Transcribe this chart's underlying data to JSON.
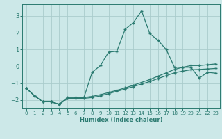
{
  "xlabel": "Humidex (Indice chaleur)",
  "xlim": [
    -0.5,
    23.5
  ],
  "ylim": [
    -2.5,
    3.7
  ],
  "yticks": [
    -2,
    -1,
    0,
    1,
    2,
    3
  ],
  "xticks": [
    0,
    1,
    2,
    3,
    4,
    5,
    6,
    7,
    8,
    9,
    10,
    11,
    12,
    13,
    14,
    15,
    16,
    17,
    18,
    19,
    20,
    21,
    22,
    23
  ],
  "background_color": "#cce8e8",
  "grid_color": "#aacccc",
  "line_color": "#2a7a70",
  "line1_x": [
    0,
    1,
    2,
    3,
    4,
    5,
    6,
    7,
    8,
    9,
    10,
    11,
    12,
    13,
    14,
    15,
    16,
    17,
    18,
    19,
    20,
    21,
    22,
    23
  ],
  "line1_y": [
    -1.3,
    -1.75,
    -2.1,
    -2.1,
    -2.25,
    -1.85,
    -1.85,
    -1.85,
    -0.35,
    0.05,
    0.85,
    0.9,
    2.2,
    2.6,
    3.3,
    1.95,
    1.55,
    1.0,
    -0.05,
    -0.05,
    -0.05,
    -0.7,
    -0.35,
    -0.4
  ],
  "line2_x": [
    0,
    1,
    2,
    3,
    4,
    5,
    6,
    7,
    8,
    9,
    10,
    11,
    12,
    13,
    14,
    15,
    16,
    17,
    18,
    19,
    20,
    21,
    22,
    23
  ],
  "line2_y": [
    -1.3,
    -1.75,
    -2.1,
    -2.1,
    -2.25,
    -1.9,
    -1.9,
    -1.85,
    -1.78,
    -1.68,
    -1.55,
    -1.42,
    -1.28,
    -1.12,
    -0.95,
    -0.78,
    -0.58,
    -0.38,
    -0.18,
    -0.05,
    0.05,
    0.05,
    0.1,
    0.15
  ],
  "line3_x": [
    0,
    1,
    2,
    3,
    4,
    5,
    6,
    7,
    8,
    9,
    10,
    11,
    12,
    13,
    14,
    15,
    16,
    17,
    18,
    19,
    20,
    21,
    22,
    23
  ],
  "line3_y": [
    -1.3,
    -1.75,
    -2.1,
    -2.1,
    -2.25,
    -1.9,
    -1.9,
    -1.9,
    -1.85,
    -1.75,
    -1.62,
    -1.48,
    -1.35,
    -1.2,
    -1.05,
    -0.9,
    -0.72,
    -0.55,
    -0.38,
    -0.28,
    -0.2,
    -0.18,
    -0.15,
    -0.12
  ]
}
